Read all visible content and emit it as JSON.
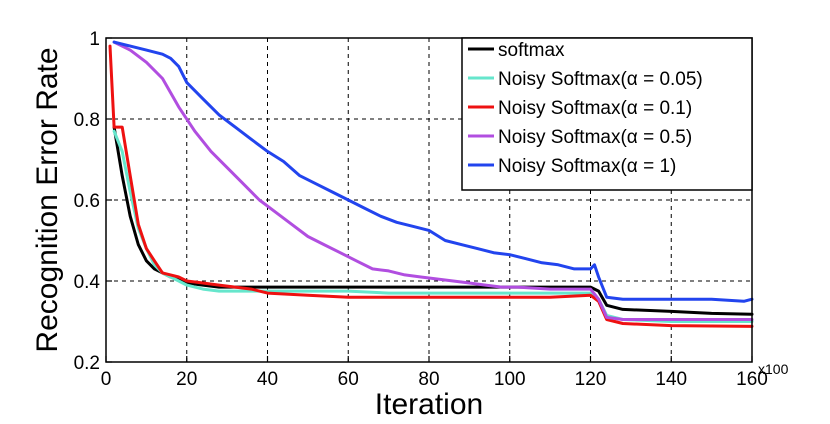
{
  "chart_data": {
    "type": "line",
    "title": "",
    "xlabel": "Iteration",
    "ylabel": "Recognition Error Rate",
    "x_scale_label": "x100",
    "xlim": [
      0,
      160
    ],
    "ylim": [
      0.2,
      1.0
    ],
    "xticks": [
      0,
      20,
      40,
      60,
      80,
      100,
      120,
      140,
      160
    ],
    "yticks": [
      0.2,
      0.4,
      0.6,
      0.8,
      1
    ],
    "grid": true,
    "legend_position": "top-right",
    "series": [
      {
        "name": "softmax",
        "color": "#000000",
        "points": [
          [
            2,
            0.78
          ],
          [
            4,
            0.66
          ],
          [
            6,
            0.56
          ],
          [
            8,
            0.49
          ],
          [
            10,
            0.45
          ],
          [
            12,
            0.43
          ],
          [
            14,
            0.42
          ],
          [
            16,
            0.41
          ],
          [
            18,
            0.405
          ],
          [
            20,
            0.395
          ],
          [
            24,
            0.39
          ],
          [
            28,
            0.385
          ],
          [
            32,
            0.385
          ],
          [
            36,
            0.385
          ],
          [
            40,
            0.385
          ],
          [
            50,
            0.385
          ],
          [
            60,
            0.385
          ],
          [
            70,
            0.385
          ],
          [
            80,
            0.385
          ],
          [
            90,
            0.385
          ],
          [
            100,
            0.385
          ],
          [
            110,
            0.385
          ],
          [
            120,
            0.385
          ],
          [
            122,
            0.375
          ],
          [
            124,
            0.34
          ],
          [
            128,
            0.33
          ],
          [
            140,
            0.325
          ],
          [
            150,
            0.32
          ],
          [
            160,
            0.318
          ]
        ]
      },
      {
        "name": "Noisy Softmax(α = 0.05)",
        "color": "#66e6cc",
        "points": [
          [
            2,
            0.77
          ],
          [
            4,
            0.72
          ],
          [
            6,
            0.62
          ],
          [
            8,
            0.53
          ],
          [
            10,
            0.48
          ],
          [
            12,
            0.44
          ],
          [
            14,
            0.42
          ],
          [
            16,
            0.41
          ],
          [
            18,
            0.4
          ],
          [
            20,
            0.39
          ],
          [
            24,
            0.38
          ],
          [
            28,
            0.375
          ],
          [
            32,
            0.375
          ],
          [
            40,
            0.375
          ],
          [
            50,
            0.375
          ],
          [
            60,
            0.375
          ],
          [
            70,
            0.37
          ],
          [
            80,
            0.37
          ],
          [
            90,
            0.37
          ],
          [
            100,
            0.37
          ],
          [
            110,
            0.37
          ],
          [
            120,
            0.37
          ],
          [
            122,
            0.355
          ],
          [
            124,
            0.315
          ],
          [
            128,
            0.305
          ],
          [
            140,
            0.3
          ],
          [
            160,
            0.3
          ]
        ]
      },
      {
        "name": "Noisy Softmax(α = 0.1)",
        "color": "#ee1111",
        "points": [
          [
            1,
            0.98
          ],
          [
            2,
            0.78
          ],
          [
            4,
            0.78
          ],
          [
            6,
            0.66
          ],
          [
            8,
            0.54
          ],
          [
            10,
            0.48
          ],
          [
            12,
            0.45
          ],
          [
            14,
            0.42
          ],
          [
            16,
            0.415
          ],
          [
            18,
            0.41
          ],
          [
            20,
            0.4
          ],
          [
            24,
            0.395
          ],
          [
            28,
            0.39
          ],
          [
            32,
            0.385
          ],
          [
            36,
            0.38
          ],
          [
            40,
            0.37
          ],
          [
            50,
            0.365
          ],
          [
            60,
            0.36
          ],
          [
            70,
            0.36
          ],
          [
            80,
            0.36
          ],
          [
            90,
            0.36
          ],
          [
            100,
            0.36
          ],
          [
            110,
            0.36
          ],
          [
            120,
            0.365
          ],
          [
            122,
            0.35
          ],
          [
            124,
            0.305
          ],
          [
            128,
            0.295
          ],
          [
            140,
            0.29
          ],
          [
            160,
            0.288
          ]
        ]
      },
      {
        "name": "Noisy Softmax(α = 0.5)",
        "color": "#b14ee0",
        "points": [
          [
            2,
            0.99
          ],
          [
            6,
            0.97
          ],
          [
            10,
            0.94
          ],
          [
            14,
            0.9
          ],
          [
            18,
            0.83
          ],
          [
            22,
            0.77
          ],
          [
            26,
            0.72
          ],
          [
            30,
            0.68
          ],
          [
            34,
            0.64
          ],
          [
            38,
            0.6
          ],
          [
            42,
            0.57
          ],
          [
            46,
            0.54
          ],
          [
            50,
            0.51
          ],
          [
            54,
            0.49
          ],
          [
            58,
            0.47
          ],
          [
            62,
            0.45
          ],
          [
            66,
            0.43
          ],
          [
            70,
            0.425
          ],
          [
            74,
            0.415
          ],
          [
            78,
            0.41
          ],
          [
            82,
            0.405
          ],
          [
            86,
            0.4
          ],
          [
            90,
            0.395
          ],
          [
            94,
            0.39
          ],
          [
            98,
            0.385
          ],
          [
            102,
            0.385
          ],
          [
            110,
            0.38
          ],
          [
            120,
            0.38
          ],
          [
            122,
            0.355
          ],
          [
            124,
            0.31
          ],
          [
            128,
            0.305
          ],
          [
            140,
            0.305
          ],
          [
            160,
            0.305
          ]
        ]
      },
      {
        "name": "Noisy Softmax(α = 1)",
        "color": "#2244ee",
        "points": [
          [
            2,
            0.99
          ],
          [
            6,
            0.98
          ],
          [
            10,
            0.97
          ],
          [
            14,
            0.96
          ],
          [
            16,
            0.95
          ],
          [
            18,
            0.93
          ],
          [
            20,
            0.89
          ],
          [
            24,
            0.85
          ],
          [
            28,
            0.81
          ],
          [
            32,
            0.78
          ],
          [
            36,
            0.75
          ],
          [
            40,
            0.72
          ],
          [
            44,
            0.695
          ],
          [
            48,
            0.66
          ],
          [
            52,
            0.64
          ],
          [
            56,
            0.62
          ],
          [
            60,
            0.6
          ],
          [
            64,
            0.58
          ],
          [
            68,
            0.56
          ],
          [
            72,
            0.545
          ],
          [
            76,
            0.535
          ],
          [
            80,
            0.525
          ],
          [
            84,
            0.5
          ],
          [
            88,
            0.49
          ],
          [
            92,
            0.48
          ],
          [
            96,
            0.47
          ],
          [
            100,
            0.465
          ],
          [
            104,
            0.455
          ],
          [
            108,
            0.445
          ],
          [
            112,
            0.44
          ],
          [
            116,
            0.43
          ],
          [
            120,
            0.43
          ],
          [
            121,
            0.44
          ],
          [
            122,
            0.41
          ],
          [
            124,
            0.36
          ],
          [
            128,
            0.355
          ],
          [
            140,
            0.355
          ],
          [
            150,
            0.355
          ],
          [
            158,
            0.35
          ],
          [
            160,
            0.355
          ]
        ]
      }
    ]
  }
}
